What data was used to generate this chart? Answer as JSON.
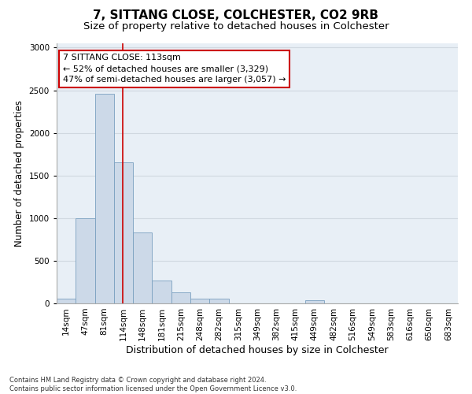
{
  "title": "7, SITTANG CLOSE, COLCHESTER, CO2 9RB",
  "subtitle": "Size of property relative to detached houses in Colchester",
  "xlabel": "Distribution of detached houses by size in Colchester",
  "ylabel": "Number of detached properties",
  "categories": [
    "14sqm",
    "47sqm",
    "81sqm",
    "114sqm",
    "148sqm",
    "181sqm",
    "215sqm",
    "248sqm",
    "282sqm",
    "315sqm",
    "349sqm",
    "382sqm",
    "415sqm",
    "449sqm",
    "482sqm",
    "516sqm",
    "549sqm",
    "583sqm",
    "616sqm",
    "650sqm",
    "683sqm"
  ],
  "values": [
    60,
    1000,
    2460,
    1650,
    830,
    270,
    130,
    55,
    55,
    0,
    0,
    0,
    0,
    35,
    0,
    0,
    0,
    0,
    0,
    0,
    0
  ],
  "bar_color": "#ccd9e8",
  "bar_edge_color": "#7aa0c0",
  "grid_color": "#d0d8e0",
  "annotation_box_text": "7 SITTANG CLOSE: 113sqm\n← 52% of detached houses are smaller (3,329)\n47% of semi-detached houses are larger (3,057) →",
  "annotation_box_color": "#ffffff",
  "annotation_box_edge_color": "#cc0000",
  "marker_line_color": "#cc0000",
  "footnote": "Contains HM Land Registry data © Crown copyright and database right 2024.\nContains public sector information licensed under the Open Government Licence v3.0.",
  "ylim": [
    0,
    3050
  ],
  "background_color": "#e8eff6",
  "plot_bg_color": "#e8eff6",
  "title_fontsize": 11,
  "subtitle_fontsize": 9.5,
  "xlabel_fontsize": 9,
  "ylabel_fontsize": 8.5,
  "tick_fontsize": 7.5,
  "footnote_fontsize": 6,
  "annotation_fontsize": 8
}
